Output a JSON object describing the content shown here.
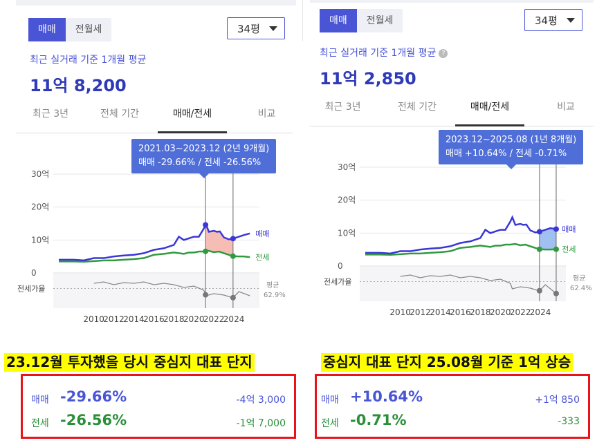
{
  "colors": {
    "accent": "#4a55d6",
    "sale": "#3b36d6",
    "jeonse": "#2f9a3e",
    "ratio": "#888888",
    "highlight": "#ffff00",
    "border": "#e8141a",
    "up_fill": "#8fb5f0",
    "down_fill": "#f3b2a6"
  },
  "panels": [
    {
      "seg": [
        "매매",
        "전월세"
      ],
      "size": "34평",
      "subtitle": "최근 실거래 기준 1개월 평균",
      "price": "11억 8,200",
      "tabs": [
        "최근 3년",
        "전체 기간",
        "매매/전세",
        "비교"
      ],
      "tooltip": {
        "line1": "2021.03~2023.12 (2년 9개월)",
        "line2": "매매 -29.66%  /  전세 -26.56%"
      },
      "caption": "23.12월 투자했을 당시 중심지 대표 단지",
      "summary": [
        {
          "label": "매매",
          "pct": "-29.66%",
          "amount": "-4억 3,000"
        },
        {
          "label": "전세",
          "pct": "-26.56%",
          "amount": "-1억 7,000"
        }
      ]
    },
    {
      "seg": [
        "매매",
        "전월세"
      ],
      "size": "34평",
      "subtitle": "최근 실거래 기준 1개월 평균",
      "price": "11억 2,850",
      "tabs": [
        "최근 3년",
        "전체 기간",
        "매매/전세",
        "비교"
      ],
      "tooltip": {
        "line1": "2023.12~2025.08 (1년 8개월)",
        "line2": "매매 +10.64%  /  전세 -0.71%"
      },
      "caption": "중심지 대표 단지 25.08월 기준 1억 상승",
      "summary": [
        {
          "label": "매매",
          "pct": "+10.64%",
          "amount": "+1억 850"
        },
        {
          "label": "전세",
          "pct": "-0.71%",
          "amount": "-333"
        }
      ]
    }
  ],
  "chart_data": [
    {
      "type": "line",
      "y_ticks": [
        "30억",
        "20억",
        "10억",
        "0"
      ],
      "ylim": [
        0,
        30
      ],
      "x_ticks": [
        "2010",
        "2012",
        "2014",
        "2016",
        "2018",
        "2020",
        "2022",
        "2024"
      ],
      "xlim": [
        2006.5,
        2026
      ],
      "ratio_label": "전세가율",
      "avg_label": "평균",
      "avg_value": "62.9%",
      "series": [
        {
          "name": "매매",
          "x": [
            2006.5,
            2008,
            2009,
            2010,
            2011,
            2012,
            2013,
            2014,
            2015,
            2016,
            2017,
            2018,
            2018.5,
            2019,
            2019.5,
            2020,
            2020.5,
            2021,
            2021.2,
            2021.5,
            2022,
            2022.3,
            2022.6,
            2023,
            2023.5,
            2023.9,
            2024.5,
            2025,
            2025.6
          ],
          "values": [
            4,
            4,
            3.8,
            4.5,
            4.5,
            5,
            5.3,
            5.5,
            6,
            7,
            7.5,
            8.5,
            11,
            10,
            10.5,
            11,
            11,
            13.5,
            14.8,
            12.5,
            12.8,
            12.5,
            12.6,
            10.8,
            10.2,
            10.4,
            11,
            11.5,
            12
          ]
        },
        {
          "name": "전세",
          "x": [
            2006.5,
            2008,
            2009,
            2010,
            2011,
            2012,
            2013,
            2014,
            2015,
            2016,
            2017,
            2018,
            2019,
            2019.5,
            2020,
            2020.5,
            2021,
            2021.5,
            2022,
            2022.5,
            2023,
            2023.5,
            2023.9,
            2024.5,
            2025,
            2025.6
          ],
          "values": [
            3.5,
            3.5,
            3.4,
            3.6,
            3.8,
            3.8,
            4,
            4.2,
            4.5,
            5.5,
            5.8,
            6.2,
            5.8,
            6.2,
            6.2,
            6.5,
            6.5,
            6.7,
            6.3,
            6.5,
            6,
            5.5,
            5.1,
            5,
            5,
            4.8
          ]
        },
        {
          "name": "전세가율",
          "x": [
            2010,
            2011,
            2012,
            2013,
            2014,
            2015,
            2016,
            2017,
            2018,
            2019,
            2020,
            2021,
            2021.2,
            2022,
            2023,
            2023.9,
            2024.5,
            2025.6
          ],
          "values": [
            70,
            72,
            68,
            71,
            70,
            72,
            68,
            70,
            68,
            64,
            66,
            60,
            52,
            55,
            53,
            49,
            58,
            52
          ]
        }
      ],
      "highlight_range": [
        "2021.03",
        "2023.12"
      ]
    },
    {
      "type": "line",
      "y_ticks": [
        "30억",
        "20억",
        "10억",
        "0"
      ],
      "ylim": [
        0,
        30
      ],
      "x_ticks": [
        "2010",
        "2012",
        "2014",
        "2016",
        "2018",
        "2020",
        "2022",
        "2024"
      ],
      "xlim": [
        2006.5,
        2026
      ],
      "ratio_label": "전세가율",
      "avg_label": "평균",
      "avg_value": "62.4%",
      "series": [
        {
          "name": "매매",
          "x": [
            2006.5,
            2008,
            2009,
            2010,
            2011,
            2012,
            2013,
            2014,
            2015,
            2016,
            2017,
            2018,
            2018.5,
            2019,
            2019.5,
            2020,
            2020.5,
            2021,
            2021.2,
            2021.5,
            2022,
            2022.3,
            2022.6,
            2023,
            2023.5,
            2023.9,
            2024.5,
            2025,
            2025.6
          ],
          "values": [
            4,
            4,
            3.8,
            4.5,
            4.5,
            5,
            5.3,
            5.5,
            6,
            7,
            7.5,
            8.5,
            11,
            10,
            10.5,
            11,
            11,
            13.5,
            14.8,
            12.5,
            12.8,
            12.5,
            12.6,
            10.8,
            10.2,
            10.4,
            11,
            11.5,
            11.2
          ]
        },
        {
          "name": "전세",
          "x": [
            2006.5,
            2008,
            2009,
            2010,
            2011,
            2012,
            2013,
            2014,
            2015,
            2016,
            2017,
            2018,
            2019,
            2019.5,
            2020,
            2020.5,
            2021,
            2021.5,
            2022,
            2022.5,
            2023,
            2023.5,
            2023.9,
            2024.5,
            2025,
            2025.6
          ],
          "values": [
            3.5,
            3.5,
            3.4,
            3.6,
            3.8,
            3.8,
            4,
            4.2,
            4.5,
            5.5,
            5.8,
            6.2,
            5.8,
            6.2,
            6.2,
            6.5,
            6.5,
            6.7,
            6.3,
            6.5,
            6,
            5.5,
            5.1,
            5,
            5,
            5.1
          ]
        },
        {
          "name": "전세가율",
          "x": [
            2010,
            2011,
            2012,
            2013,
            2014,
            2015,
            2016,
            2017,
            2018,
            2019,
            2020,
            2021,
            2021.2,
            2022,
            2023,
            2023.9,
            2024.5,
            2025.6
          ],
          "values": [
            70,
            72,
            68,
            71,
            70,
            72,
            68,
            70,
            68,
            64,
            66,
            60,
            52,
            55,
            53,
            49,
            58,
            45
          ]
        }
      ],
      "highlight_range": [
        "2023.12",
        "2025.08"
      ]
    }
  ]
}
